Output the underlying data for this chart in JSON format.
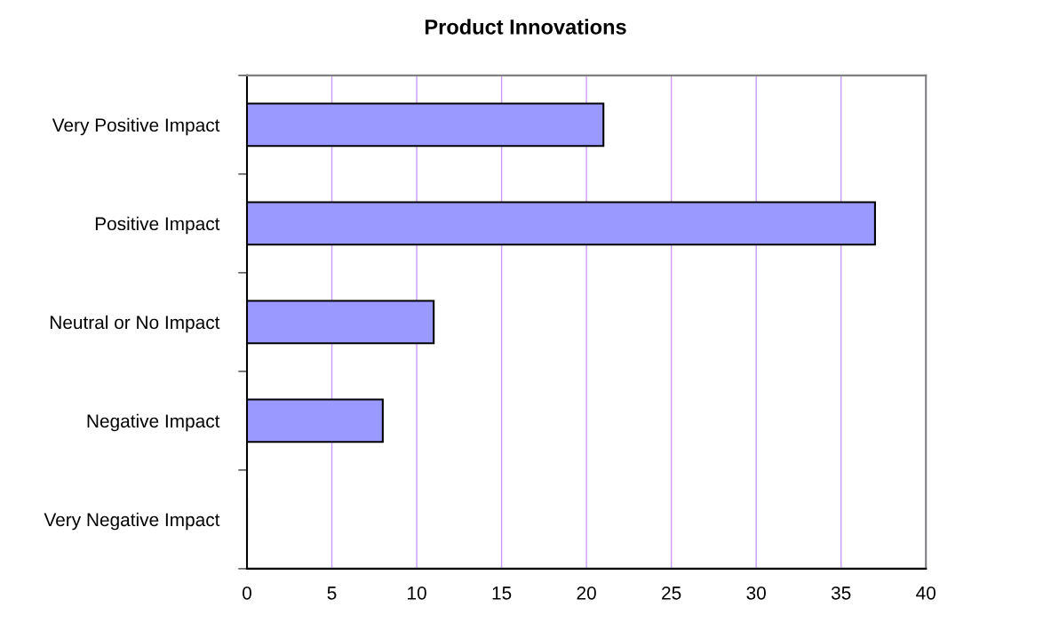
{
  "chart_data": {
    "type": "bar",
    "orientation": "horizontal",
    "title": "Product Innovations",
    "categories": [
      "Very Positive Impact",
      "Positive Impact",
      "Neutral or No Impact",
      "Negative Impact",
      "Very Negative Impact"
    ],
    "values": [
      21,
      37,
      11,
      8,
      0
    ],
    "color": "#9999ff",
    "xlim": [
      0,
      40
    ],
    "xticks": [
      0,
      5,
      10,
      15,
      20,
      25,
      30,
      35,
      40
    ],
    "grid": "x",
    "legend": false
  }
}
